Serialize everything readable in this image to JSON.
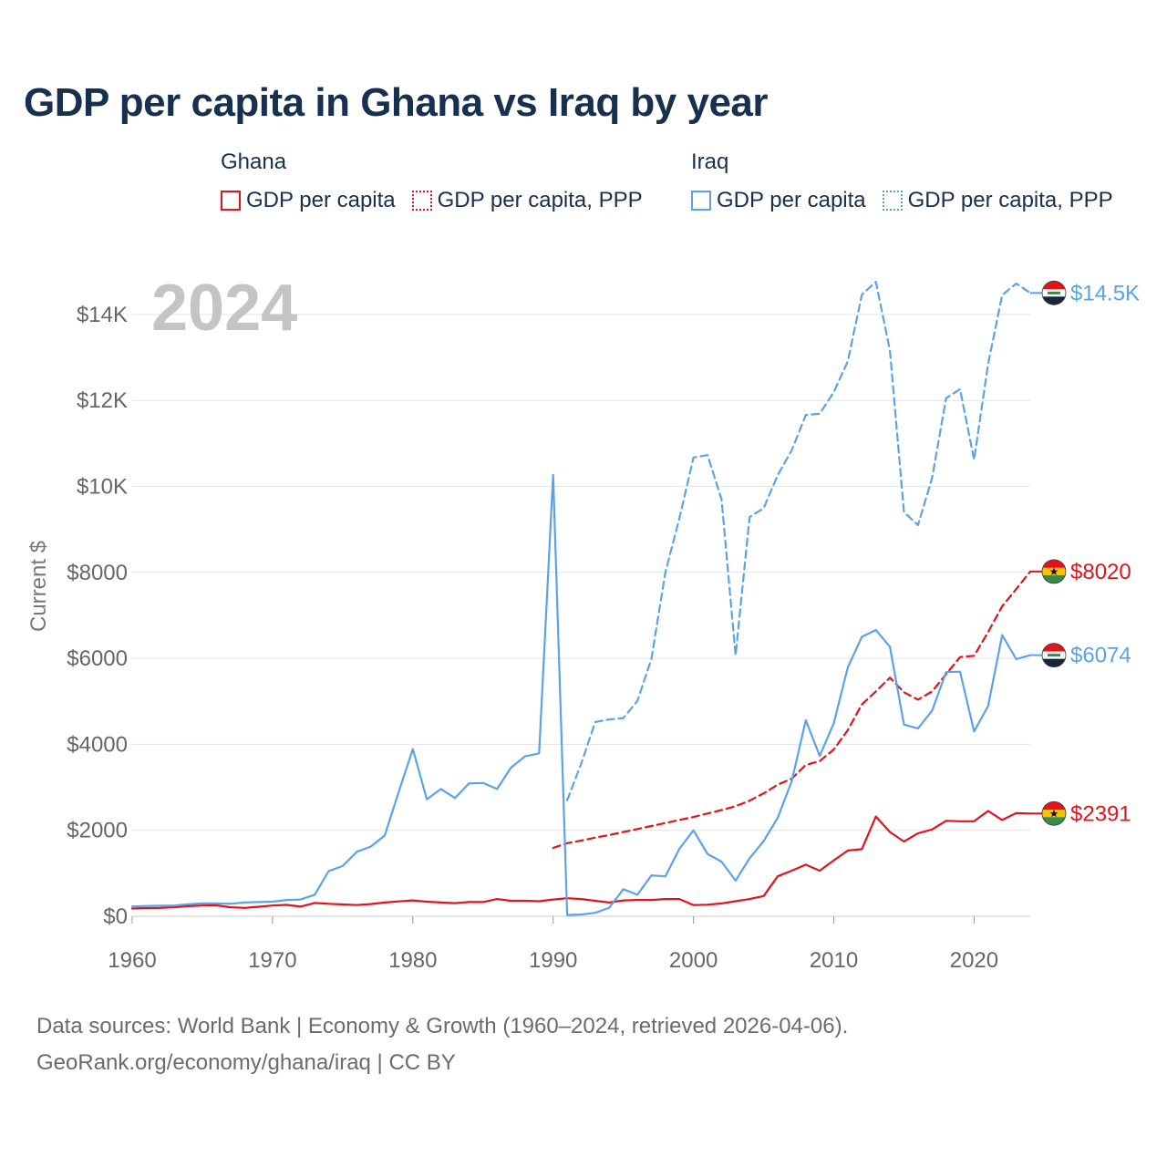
{
  "title": "GDP per capita in Ghana vs Iraq by year",
  "year_label": "2024",
  "legend": {
    "ghana": {
      "name": "Ghana",
      "items": [
        {
          "label": "GDP per capita",
          "style": "solid",
          "color": "#e3131b"
        },
        {
          "label": "GDP per capita, PPP",
          "style": "dotted",
          "color": "#e3131b"
        }
      ]
    },
    "iraq": {
      "name": "Iraq",
      "items": [
        {
          "label": "GDP per capita",
          "style": "solid",
          "color": "#5ba3e6"
        },
        {
          "label": "GDP per capita, PPP",
          "style": "dotted",
          "color": "#5ba3e6"
        }
      ]
    }
  },
  "footer": {
    "line1": "Data sources: World Bank | Economy & Growth (1960–2024, retrieved 2026-04-06).",
    "line2": "GeoRank.org/economy/ghana/iraq | CC BY"
  },
  "chart_data": {
    "type": "line",
    "title": "GDP per capita in Ghana vs Iraq by year",
    "xlabel": "",
    "ylabel": "Current $",
    "xlim": [
      1960,
      2024
    ],
    "ylim": [
      0,
      14500
    ],
    "x_ticks": [
      1960,
      1970,
      1980,
      1990,
      2000,
      2010,
      2020
    ],
    "x_tick_labels": [
      "1960",
      "1970",
      "1980",
      "1990",
      "2000",
      "2010",
      "2020"
    ],
    "y_ticks": [
      0,
      2000,
      4000,
      6000,
      8000,
      10000,
      12000,
      14000
    ],
    "y_tick_labels": [
      "$0",
      "$2000",
      "$4000",
      "$6000",
      "$8000",
      "$10K",
      "$12K",
      "$14K"
    ],
    "grid": true,
    "series": [
      {
        "name": "Ghana GDP per capita",
        "color": "#e3131b",
        "dash": "solid",
        "end_label": "$2391",
        "x": [
          1960,
          1961,
          1962,
          1963,
          1964,
          1965,
          1966,
          1967,
          1968,
          1969,
          1970,
          1971,
          1972,
          1973,
          1974,
          1975,
          1976,
          1977,
          1978,
          1979,
          1980,
          1981,
          1982,
          1983,
          1984,
          1985,
          1986,
          1987,
          1988,
          1989,
          1990,
          1991,
          1992,
          1993,
          1994,
          1995,
          1996,
          1997,
          1998,
          1999,
          2000,
          2001,
          2002,
          2003,
          2004,
          2005,
          2006,
          2007,
          2008,
          2009,
          2010,
          2011,
          2012,
          2013,
          2014,
          2015,
          2016,
          2017,
          2018,
          2019,
          2020,
          2021,
          2022,
          2023,
          2024
        ],
        "values": [
          180,
          190,
          195,
          210,
          235,
          250,
          255,
          210,
          195,
          220,
          250,
          265,
          225,
          310,
          290,
          275,
          260,
          285,
          320,
          345,
          370,
          340,
          320,
          305,
          330,
          330,
          400,
          360,
          360,
          350,
          390,
          420,
          400,
          360,
          320,
          370,
          380,
          380,
          400,
          400,
          260,
          270,
          300,
          350,
          400,
          470,
          930,
          1060,
          1200,
          1060,
          1300,
          1530,
          1560,
          2320,
          1960,
          1740,
          1930,
          2020,
          2220,
          2210,
          2210,
          2450,
          2240,
          2400,
          2391
        ]
      },
      {
        "name": "Ghana GDP per capita, PPP",
        "color": "#e3131b",
        "dash": "dashed",
        "end_label": "$8020",
        "x": [
          1990,
          1991,
          1992,
          1993,
          1994,
          1995,
          1996,
          1997,
          1998,
          1999,
          2000,
          2001,
          2002,
          2003,
          2004,
          2005,
          2006,
          2007,
          2008,
          2009,
          2010,
          2011,
          2012,
          2013,
          2014,
          2015,
          2016,
          2017,
          2018,
          2019,
          2020,
          2021,
          2022,
          2023,
          2024
        ],
        "values": [
          1590,
          1700,
          1760,
          1830,
          1890,
          1960,
          2030,
          2100,
          2170,
          2240,
          2310,
          2390,
          2470,
          2560,
          2690,
          2860,
          3060,
          3200,
          3520,
          3610,
          3880,
          4330,
          4930,
          5230,
          5550,
          5210,
          5040,
          5230,
          5630,
          6030,
          6060,
          6610,
          7210,
          7610,
          8020
        ]
      },
      {
        "name": "Iraq GDP per capita",
        "color": "#5ba3e6",
        "dash": "solid",
        "end_label": "$6074",
        "x": [
          1960,
          1961,
          1962,
          1963,
          1964,
          1965,
          1966,
          1967,
          1968,
          1969,
          1970,
          1971,
          1972,
          1973,
          1974,
          1975,
          1976,
          1977,
          1978,
          1979,
          1980,
          1981,
          1982,
          1983,
          1984,
          1985,
          1986,
          1987,
          1988,
          1989,
          1990,
          1991,
          1992,
          1993,
          1994,
          1995,
          1996,
          1997,
          1998,
          1999,
          2000,
          2001,
          2002,
          2003,
          2004,
          2005,
          2006,
          2007,
          2008,
          2009,
          2010,
          2011,
          2012,
          2013,
          2014,
          2015,
          2016,
          2017,
          2018,
          2019,
          2020,
          2021,
          2022,
          2023,
          2024
        ],
        "values": [
          230,
          240,
          245,
          250,
          280,
          300,
          300,
          290,
          320,
          330,
          340,
          380,
          390,
          500,
          1050,
          1170,
          1500,
          1620,
          1880,
          2900,
          3890,
          2720,
          2960,
          2750,
          3090,
          3100,
          2960,
          3460,
          3720,
          3790,
          10270,
          30,
          40,
          80,
          200,
          630,
          500,
          950,
          930,
          1570,
          2000,
          1450,
          1270,
          830,
          1350,
          1750,
          2290,
          3140,
          4560,
          3730,
          4490,
          5790,
          6500,
          6660,
          6270,
          4460,
          4370,
          4780,
          5680,
          5690,
          4300,
          4890,
          6540,
          5980,
          6074
        ]
      },
      {
        "name": "Iraq GDP per capita, PPP",
        "color": "#5ba3e6",
        "dash": "dashed",
        "end_label": "$14.5K",
        "x": [
          1991,
          1992,
          1993,
          1994,
          1995,
          1996,
          1997,
          1998,
          1999,
          2000,
          2001,
          2002,
          2003,
          2004,
          2005,
          2006,
          2007,
          2008,
          2009,
          2010,
          2011,
          2012,
          2013,
          2014,
          2015,
          2016,
          2017,
          2018,
          2019,
          2020,
          2021,
          2022,
          2023,
          2024
        ],
        "values": [
          2700,
          3550,
          4520,
          4580,
          4610,
          5010,
          5990,
          8000,
          9260,
          10670,
          10730,
          9700,
          6070,
          9290,
          9490,
          10260,
          10840,
          11660,
          11690,
          12190,
          12910,
          14460,
          14760,
          13160,
          9400,
          9100,
          10190,
          12050,
          12260,
          10620,
          12850,
          14450,
          14720,
          14500
        ]
      }
    ],
    "end_markers": [
      {
        "label": "$14.5K",
        "country": "Iraq",
        "value": 14500,
        "color": "#5ba3e6"
      },
      {
        "label": "$8020",
        "country": "Ghana",
        "value": 8020,
        "color": "#e3131b"
      },
      {
        "label": "$6074",
        "country": "Iraq",
        "value": 6074,
        "color": "#5ba3e6"
      },
      {
        "label": "$2391",
        "country": "Ghana",
        "value": 2391,
        "color": "#e3131b"
      }
    ]
  }
}
